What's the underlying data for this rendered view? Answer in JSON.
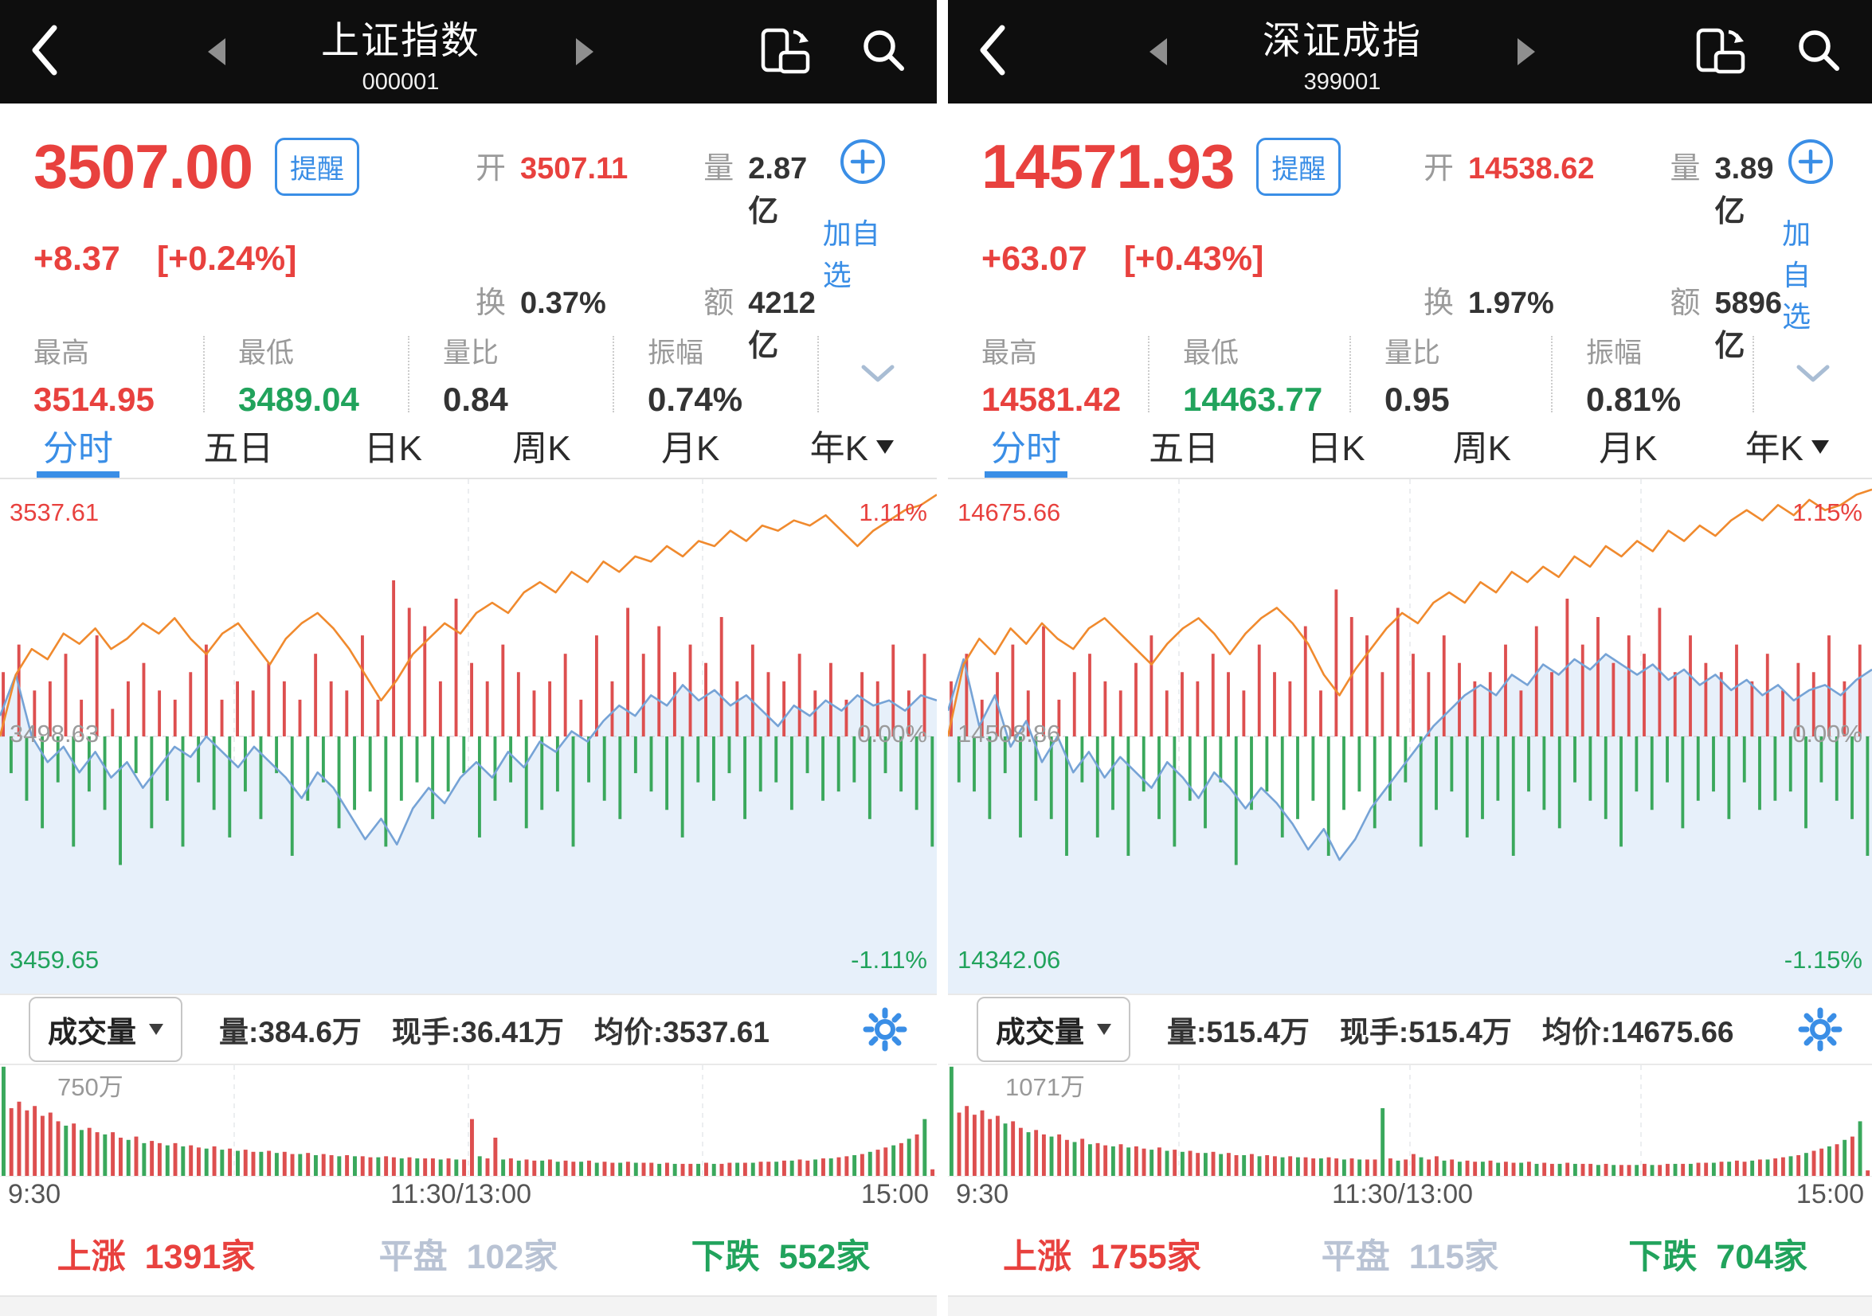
{
  "colors": {
    "red": "#e8413e",
    "green": "#21a35c",
    "blue": "#3a8ee6",
    "flat_gray": "#b9c3d4",
    "header_bg": "#0e0e0e",
    "price_line": "#76a3d6",
    "avg_line": "#f08a2e",
    "area_fill": "#e7f0fa",
    "bar_red": "#dd4f4f",
    "bar_green": "#3aa85c"
  },
  "icons": {
    "back": "chevron-left",
    "index_prev": "triangle-left",
    "index_next": "triangle-right",
    "rotate": "rotate-screen",
    "search": "magnifier",
    "add": "plus-circle",
    "expand": "chevron-down",
    "tab_dropdown": "triangle-down",
    "indicator_dropdown": "triangle-down",
    "settings": "gear"
  },
  "panels": [
    {
      "header": {
        "title": "上证指数",
        "code": "000001"
      },
      "quote": {
        "price": "3507.00",
        "alert": "提醒",
        "change": "+8.37",
        "change_pct": "[+0.24%]",
        "open_label": "开",
        "open": "3507.11",
        "volume_label": "量",
        "volume": "2.87亿",
        "turnover_label": "换",
        "turnover": "0.37%",
        "amount_label": "额",
        "amount": "4212亿",
        "add_watchlist": "加自选"
      },
      "stats": [
        {
          "label": "最高",
          "value": "3514.95"
        },
        {
          "label": "最低",
          "value": "3489.04"
        },
        {
          "label": "量比",
          "value": "0.84"
        },
        {
          "label": "振幅",
          "value": "0.74%"
        }
      ],
      "tabs": [
        "分时",
        "五日",
        "日K",
        "周K",
        "月K",
        "年K"
      ],
      "toolbar": {
        "indicator": "成交量",
        "vol": "量:384.6万",
        "lots": "现手:36.41万",
        "avg": "均价:3537.61"
      },
      "breadth": {
        "up_label": "上涨",
        "up": "1391家",
        "flat_label": "平盘",
        "flat": "102家",
        "down_label": "下跌",
        "down": "552家"
      }
    },
    {
      "header": {
        "title": "深证成指",
        "code": "399001"
      },
      "quote": {
        "price": "14571.93",
        "alert": "提醒",
        "change": "+63.07",
        "change_pct": "[+0.43%]",
        "open_label": "开",
        "open": "14538.62",
        "volume_label": "量",
        "volume": "3.89亿",
        "turnover_label": "换",
        "turnover": "1.97%",
        "amount_label": "额",
        "amount": "5896亿",
        "add_watchlist": "加自选"
      },
      "stats": [
        {
          "label": "最高",
          "value": "14581.42"
        },
        {
          "label": "最低",
          "value": "14463.77"
        },
        {
          "label": "量比",
          "value": "0.95"
        },
        {
          "label": "振幅",
          "value": "0.81%"
        }
      ],
      "tabs": [
        "分时",
        "五日",
        "日K",
        "周K",
        "月K",
        "年K"
      ],
      "toolbar": {
        "indicator": "成交量",
        "vol": "量:515.4万",
        "lots": "现手:515.4万",
        "avg": "均价:14675.66"
      },
      "breadth": {
        "up_label": "上涨",
        "up": "1755家",
        "flat_label": "平盘",
        "flat": "115家",
        "down_label": "下跌",
        "down": "704家"
      }
    }
  ],
  "chart_data": [
    {
      "type": "line",
      "title": "上证指数 分时",
      "x_ticks": [
        "9:30",
        "11:30/13:00",
        "15:00"
      ],
      "y_axis": {
        "top": "3537.61",
        "top_pct": "1.11%",
        "mid": "3498.63",
        "mid_pct": "0.00%",
        "bottom": "3459.65",
        "bottom_pct": "-1.11%"
      },
      "volume_axis_max": "750万",
      "legend": [
        "price",
        "leading-average"
      ],
      "price_line": [
        0.46,
        0.38,
        0.5,
        0.55,
        0.52,
        0.57,
        0.53,
        0.58,
        0.55,
        0.6,
        0.56,
        0.52,
        0.54,
        0.5,
        0.53,
        0.56,
        0.52,
        0.55,
        0.58,
        0.62,
        0.57,
        0.6,
        0.65,
        0.7,
        0.66,
        0.71,
        0.64,
        0.6,
        0.63,
        0.58,
        0.55,
        0.58,
        0.53,
        0.56,
        0.51,
        0.53,
        0.49,
        0.51,
        0.47,
        0.44,
        0.46,
        0.42,
        0.44,
        0.4,
        0.43,
        0.41,
        0.44,
        0.42,
        0.45,
        0.48,
        0.44,
        0.46,
        0.43,
        0.45,
        0.42,
        0.44,
        0.43,
        0.45,
        0.42,
        0.43
      ],
      "avg_line": [
        0.5,
        0.38,
        0.33,
        0.35,
        0.3,
        0.32,
        0.29,
        0.33,
        0.31,
        0.28,
        0.3,
        0.27,
        0.31,
        0.34,
        0.3,
        0.28,
        0.32,
        0.36,
        0.31,
        0.28,
        0.26,
        0.29,
        0.33,
        0.38,
        0.43,
        0.39,
        0.34,
        0.31,
        0.28,
        0.3,
        0.26,
        0.24,
        0.26,
        0.22,
        0.2,
        0.22,
        0.18,
        0.2,
        0.16,
        0.18,
        0.15,
        0.16,
        0.13,
        0.15,
        0.12,
        0.13,
        0.1,
        0.12,
        0.09,
        0.1,
        0.08,
        0.09,
        0.07,
        0.1,
        0.13,
        0.1,
        0.08,
        0.06,
        0.05,
        0.03
      ],
      "mid_bars": [
        0.35,
        -0.2,
        0.5,
        -0.35,
        0.25,
        -0.5,
        0.3,
        -0.25,
        0.45,
        -0.6,
        0.2,
        -0.3,
        0.55,
        -0.4,
        0.15,
        -0.7,
        0.3,
        -0.2,
        0.4,
        -0.5,
        0.25,
        -0.35,
        0.2,
        -0.6,
        0.35,
        -0.25,
        0.5,
        -0.4,
        0.2,
        -0.55,
        0.3,
        -0.3,
        0.25,
        -0.45,
        0.4,
        -0.2,
        0.3,
        -0.65,
        0.2,
        -0.35,
        0.45,
        -0.25,
        0.3,
        -0.5,
        0.25,
        -0.4,
        0.55,
        -0.3,
        0.2,
        -0.6,
        0.85,
        -0.35,
        0.7,
        -0.25,
        0.6,
        -0.45,
        0.3,
        -0.3,
        0.75,
        -0.2,
        0.4,
        -0.55,
        0.3,
        -0.35,
        0.5,
        -0.25,
        0.35,
        -0.5,
        0.25,
        -0.4,
        0.3,
        -0.3,
        0.45,
        -0.6,
        0.2,
        -0.25,
        0.55,
        -0.35,
        0.3,
        -0.45,
        0.7,
        -0.2,
        0.45,
        -0.3,
        0.6,
        -0.4,
        0.35,
        -0.55,
        0.5,
        -0.25,
        0.4,
        -0.35,
        0.65,
        -0.2,
        0.3,
        -0.45,
        0.5,
        -0.3,
        0.35,
        -0.25,
        0.3,
        -0.4,
        0.45,
        -0.2,
        0.25,
        -0.35,
        0.4,
        -0.3,
        0.2,
        -0.25,
        0.35,
        -0.45,
        0.3,
        -0.2,
        0.5,
        -0.3,
        0.25,
        -0.4,
        0.45,
        -0.6
      ],
      "volume_bars": [
        -1.0,
        0.62,
        0.68,
        0.6,
        0.64,
        0.55,
        0.58,
        0.5,
        -0.46,
        0.48,
        -0.42,
        0.44,
        0.4,
        -0.38,
        0.4,
        0.35,
        -0.33,
        0.36,
        -0.3,
        0.32,
        0.3,
        -0.28,
        0.3,
        -0.27,
        0.28,
        0.26,
        -0.25,
        0.27,
        -0.24,
        0.25,
        -0.23,
        0.24,
        0.22,
        -0.22,
        0.23,
        -0.21,
        0.22,
        0.2,
        -0.2,
        0.21,
        -0.19,
        0.2,
        0.19,
        -0.18,
        0.19,
        -0.18,
        0.18,
        0.17,
        -0.17,
        0.18,
        0.17,
        -0.16,
        0.17,
        -0.16,
        0.16,
        0.16,
        -0.15,
        0.16,
        -0.15,
        0.15,
        0.52,
        -0.18,
        0.16,
        0.35,
        -0.15,
        0.16,
        -0.14,
        0.15,
        0.14,
        -0.14,
        0.15,
        -0.13,
        0.14,
        0.13,
        -0.13,
        0.14,
        -0.12,
        0.13,
        0.12,
        -0.12,
        0.13,
        -0.12,
        0.12,
        0.12,
        -0.11,
        0.12,
        -0.11,
        0.11,
        0.11,
        -0.11,
        0.12,
        -0.11,
        0.11,
        0.12,
        -0.12,
        0.12,
        -0.12,
        0.13,
        0.13,
        -0.13,
        0.14,
        -0.14,
        0.15,
        0.14,
        -0.15,
        0.16,
        -0.16,
        0.17,
        0.18,
        -0.19,
        0.2,
        -0.22,
        0.24,
        0.26,
        -0.28,
        0.3,
        -0.34,
        0.38,
        -0.52,
        0.06
      ]
    },
    {
      "type": "line",
      "title": "深证成指 分时",
      "x_ticks": [
        "9:30",
        "11:30/13:00",
        "15:00"
      ],
      "y_axis": {
        "top": "14675.66",
        "top_pct": "1.15%",
        "mid": "14508.86",
        "mid_pct": "0.00%",
        "bottom": "14342.06",
        "bottom_pct": "-1.15%"
      },
      "volume_axis_max": "1071万",
      "legend": [
        "price",
        "leading-average"
      ],
      "price_line": [
        0.45,
        0.35,
        0.48,
        0.42,
        0.52,
        0.47,
        0.55,
        0.5,
        0.57,
        0.53,
        0.58,
        0.54,
        0.57,
        0.6,
        0.55,
        0.58,
        0.62,
        0.57,
        0.6,
        0.64,
        0.6,
        0.63,
        0.67,
        0.72,
        0.68,
        0.74,
        0.7,
        0.64,
        0.6,
        0.56,
        0.52,
        0.48,
        0.45,
        0.42,
        0.4,
        0.42,
        0.38,
        0.4,
        0.36,
        0.38,
        0.35,
        0.37,
        0.34,
        0.36,
        0.38,
        0.36,
        0.39,
        0.37,
        0.4,
        0.38,
        0.41,
        0.39,
        0.42,
        0.4,
        0.43,
        0.41,
        0.4,
        0.42,
        0.39,
        0.37
      ],
      "avg_line": [
        0.5,
        0.36,
        0.31,
        0.34,
        0.29,
        0.32,
        0.28,
        0.31,
        0.33,
        0.29,
        0.27,
        0.3,
        0.33,
        0.36,
        0.32,
        0.29,
        0.27,
        0.3,
        0.34,
        0.3,
        0.27,
        0.25,
        0.28,
        0.32,
        0.38,
        0.42,
        0.37,
        0.33,
        0.29,
        0.26,
        0.28,
        0.24,
        0.22,
        0.24,
        0.2,
        0.22,
        0.18,
        0.2,
        0.17,
        0.19,
        0.15,
        0.17,
        0.13,
        0.15,
        0.12,
        0.14,
        0.1,
        0.12,
        0.09,
        0.11,
        0.08,
        0.06,
        0.08,
        0.05,
        0.07,
        0.04,
        0.06,
        0.05,
        0.03,
        0.02
      ],
      "mid_bars": [
        0.3,
        -0.25,
        0.45,
        -0.3,
        0.2,
        -0.45,
        0.35,
        -0.2,
        0.5,
        -0.55,
        0.25,
        -0.35,
        0.6,
        -0.45,
        0.2,
        -0.65,
        0.35,
        -0.25,
        0.45,
        -0.55,
        0.3,
        -0.4,
        0.25,
        -0.65,
        0.4,
        -0.3,
        0.55,
        -0.45,
        0.25,
        -0.6,
        0.35,
        -0.35,
        0.3,
        -0.5,
        0.45,
        -0.25,
        0.35,
        -0.7,
        0.25,
        -0.4,
        0.5,
        -0.3,
        0.35,
        -0.55,
        0.3,
        -0.45,
        0.6,
        -0.35,
        0.25,
        -0.65,
        0.8,
        -0.4,
        0.65,
        -0.3,
        0.55,
        -0.5,
        0.35,
        -0.35,
        0.7,
        -0.25,
        0.45,
        -0.6,
        0.35,
        -0.4,
        0.55,
        -0.3,
        0.4,
        -0.55,
        0.3,
        -0.45,
        0.35,
        -0.35,
        0.5,
        -0.65,
        0.25,
        -0.3,
        0.6,
        -0.4,
        0.35,
        -0.5,
        0.75,
        -0.25,
        0.5,
        -0.35,
        0.65,
        -0.45,
        0.4,
        -0.6,
        0.55,
        -0.3,
        0.45,
        -0.4,
        0.7,
        -0.25,
        0.35,
        -0.5,
        0.55,
        -0.35,
        0.4,
        -0.3,
        0.35,
        -0.45,
        0.5,
        -0.25,
        0.3,
        -0.4,
        0.45,
        -0.35,
        0.25,
        -0.3,
        0.4,
        -0.5,
        0.35,
        -0.25,
        0.55,
        -0.35,
        0.3,
        -0.45,
        0.5,
        -0.65
      ],
      "volume_bars": [
        -1.0,
        0.58,
        0.64,
        0.56,
        0.6,
        0.52,
        0.55,
        -0.48,
        0.5,
        0.44,
        -0.4,
        0.42,
        0.38,
        -0.36,
        0.38,
        0.33,
        -0.31,
        0.34,
        -0.29,
        0.3,
        0.28,
        -0.27,
        0.29,
        -0.26,
        0.27,
        0.25,
        -0.24,
        0.26,
        -0.23,
        0.24,
        -0.22,
        0.23,
        0.21,
        -0.21,
        0.22,
        -0.2,
        0.21,
        0.19,
        -0.19,
        0.2,
        -0.18,
        0.19,
        0.18,
        -0.17,
        0.18,
        -0.17,
        0.17,
        0.16,
        -0.16,
        0.17,
        0.16,
        -0.15,
        0.16,
        -0.15,
        0.15,
        0.15,
        -0.62,
        0.16,
        -0.14,
        0.15,
        0.2,
        -0.17,
        0.15,
        0.18,
        -0.14,
        0.15,
        -0.13,
        0.14,
        0.13,
        -0.13,
        0.14,
        -0.12,
        0.13,
        0.12,
        -0.12,
        0.13,
        -0.11,
        0.12,
        0.11,
        -0.11,
        0.12,
        -0.11,
        0.11,
        0.11,
        -0.1,
        0.11,
        -0.1,
        0.1,
        0.1,
        -0.1,
        0.11,
        -0.1,
        0.1,
        0.11,
        -0.11,
        0.11,
        -0.11,
        0.12,
        0.12,
        -0.12,
        0.13,
        -0.13,
        0.14,
        0.13,
        -0.14,
        0.15,
        -0.15,
        0.16,
        0.17,
        -0.18,
        0.19,
        -0.21,
        0.23,
        0.25,
        -0.27,
        0.29,
        -0.33,
        0.36,
        -0.5,
        0.05
      ]
    }
  ]
}
